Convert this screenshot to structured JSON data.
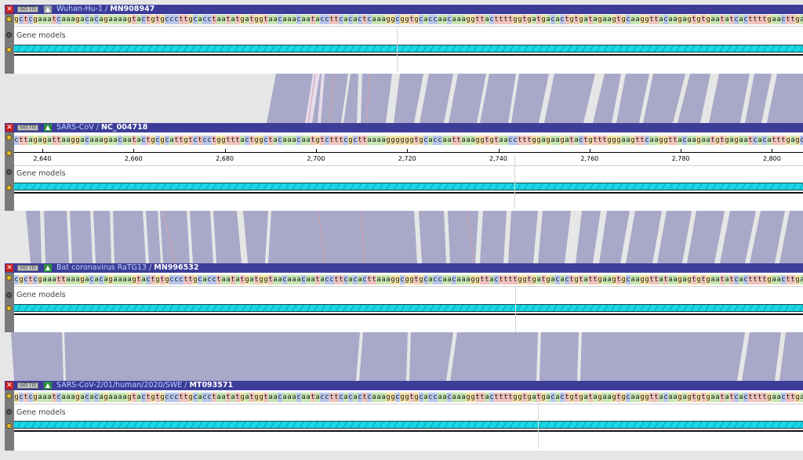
{
  "tracks": [
    {
      "species": "Wuhan-Hu-1",
      "accession": "MN908947",
      "up_style": "grey",
      "sequence": "gctcgaaatcaaagacacagaaaagtactgtgcccttgcacctaatatgatggtaacaaacaataccttcacactcaaaggcggtgcaccaacaaaggttacttttggtgatgacactgtgatagaagtgcaaggttacaagagtgtgaatatcacttttgaacttgatgaa",
      "gene_models_label": "Gene models"
    },
    {
      "species": "SARS-CoV",
      "accession": "NC_004718",
      "up_style": "green",
      "sequence": "cttagagattaaggacaaagaacaatactgcgcattgtctcctggtttactggctacaaacaatgtctttcgcttaaaaggggggtgcaccaattaaaggtgtaacctttggagaagatactgtttgggaagttcaaggttacaagaatgtgagaatcacatttgagcttgatgaa",
      "gene_models_label": "Gene models",
      "ruler_labels": [
        "2,640",
        "2,660",
        "2,680",
        "2,700",
        "2,720",
        "2,740",
        "2,760",
        "2,780",
        "2,800"
      ]
    },
    {
      "species": "Bat coronavirus RaTG13",
      "accession": "MN996532",
      "up_style": "green",
      "sequence": "cgctcgaaattaaagacacagaaaagtactgtgcccttgcacctaatatgatggtaacaaacaataccttcacacttaaaggcggtgcaccaacaaaggttacttttggtgatgacactgtattgaagtgcaaggttataagagtgtgaatatcacttttgaacttgacgaaa",
      "gene_models_label": "Gene models"
    },
    {
      "species": "SARS-CoV-2/01/human/2020/SWE",
      "accession": "MT093571",
      "up_style": "green",
      "sequence": "gctcgaaatcaaagacacagaaaagtactgtgcccttgcacctaatatgatggtaacaaacaataccttcacactcaaaggcggtgcaccaacaaaggttacttttggtgatgacactgtgatagaagtgcaaggttacaagagtgtgaatatcacttttgaacttgatgaa",
      "gene_models_label": "Gene models"
    }
  ],
  "buttons": {
    "close": "✕",
    "goto": "GO TO",
    "up": "▲"
  },
  "colors": {
    "a": "#c6e7b2",
    "c": "#b6c6ee",
    "g": "#f4e2a6",
    "t": "#f1c2bc",
    "synteny_band": "#a8a8c8",
    "mismatch": "#d8a0b0"
  }
}
